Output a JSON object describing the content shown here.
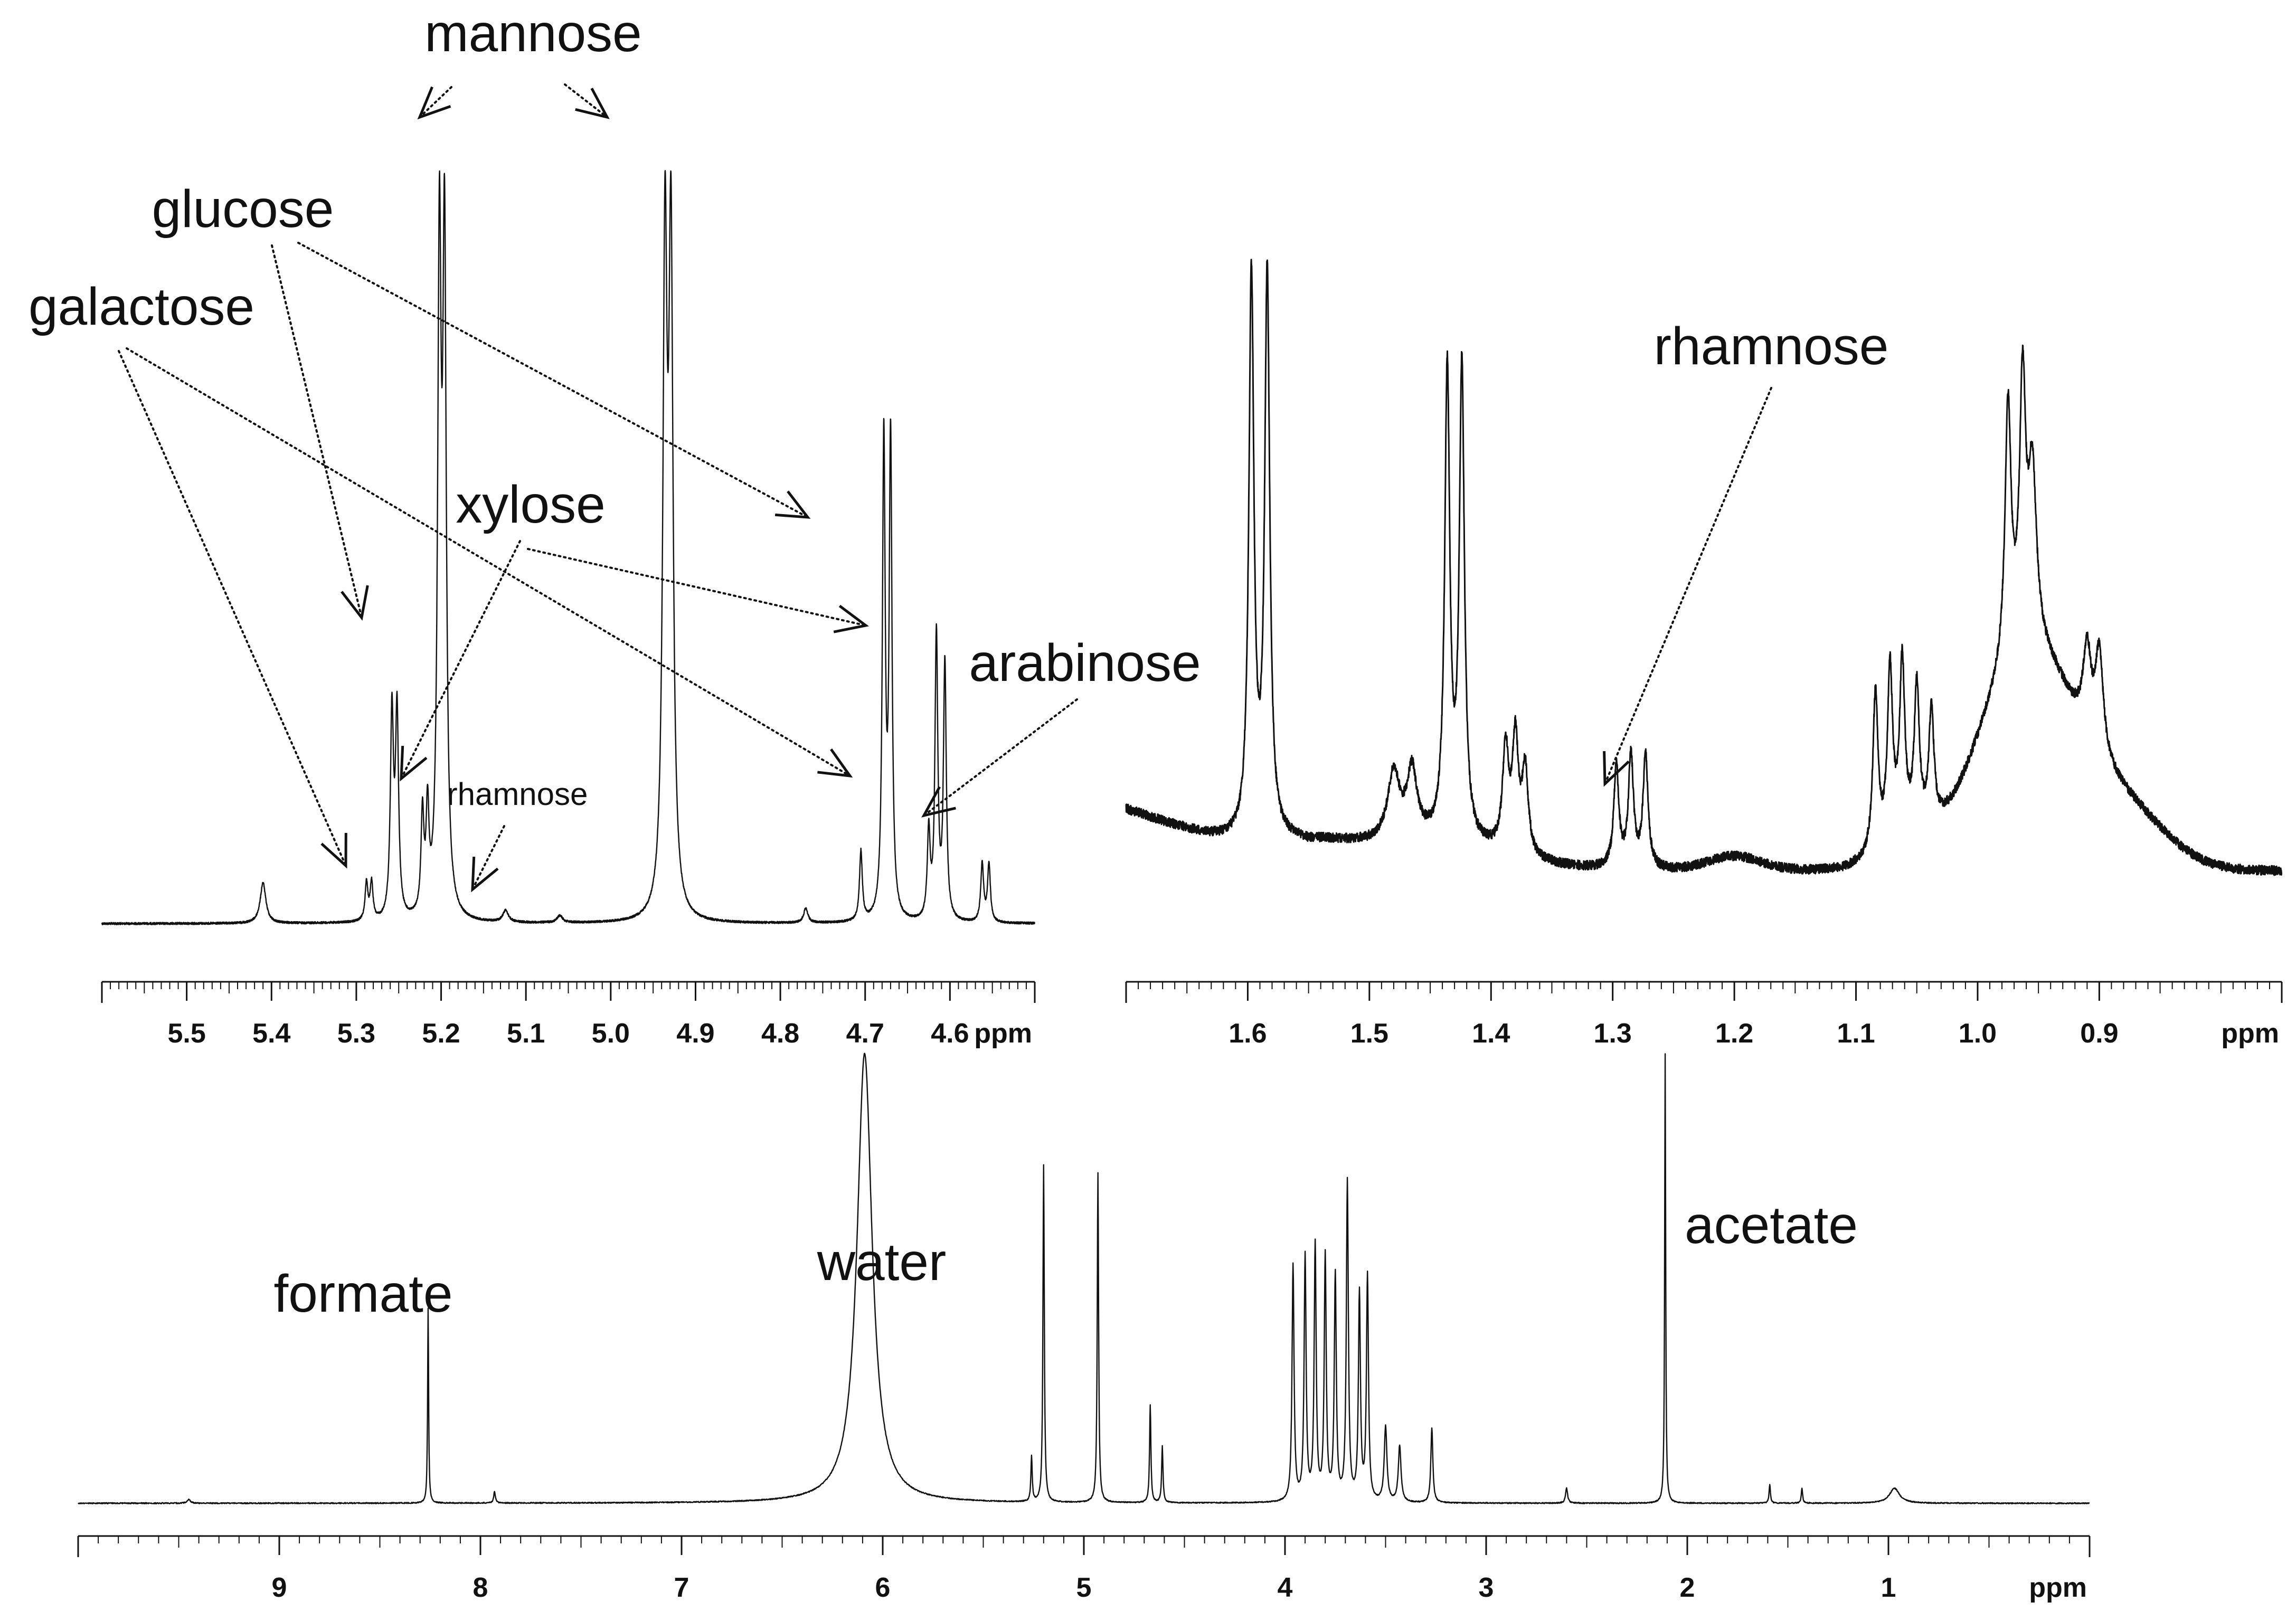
{
  "figure": {
    "description_free": true
  },
  "chart_data": [
    {
      "id": "top-left",
      "type": "line",
      "title": "",
      "xlabel": "ppm",
      "ylabel": "",
      "xlim": [
        5.6,
        4.5
      ],
      "ticks": [
        "5.5",
        "5.4",
        "5.3",
        "5.2",
        "5.1",
        "5.0",
        "4.9",
        "4.8",
        "4.7",
        "4.6"
      ],
      "tick_values": [
        5.5,
        5.4,
        5.3,
        5.2,
        5.1,
        5.0,
        4.9,
        4.8,
        4.7,
        4.6
      ],
      "peaks": [
        {
          "ppm": 5.41,
          "height": 0.07,
          "width": 0.004
        },
        {
          "ppm": 5.288,
          "height": 0.065,
          "width": 0.002
        },
        {
          "ppm": 5.282,
          "height": 0.065,
          "width": 0.002
        },
        {
          "ppm": 5.258,
          "height": 0.35,
          "width": 0.0022
        },
        {
          "ppm": 5.252,
          "height": 0.35,
          "width": 0.0022
        },
        {
          "ppm": 5.222,
          "height": 0.17,
          "width": 0.002
        },
        {
          "ppm": 5.216,
          "height": 0.17,
          "width": 0.002
        },
        {
          "ppm": 5.202,
          "height": 1.12,
          "width": 0.0025
        },
        {
          "ppm": 5.196,
          "height": 1.12,
          "width": 0.0025
        },
        {
          "ppm": 5.124,
          "height": 0.02,
          "width": 0.004
        },
        {
          "ppm": 5.06,
          "height": 0.012,
          "width": 0.004
        },
        {
          "ppm": 4.936,
          "height": 1.12,
          "width": 0.003
        },
        {
          "ppm": 4.929,
          "height": 1.12,
          "width": 0.003
        },
        {
          "ppm": 4.77,
          "height": 0.025,
          "width": 0.003
        },
        {
          "ppm": 4.705,
          "height": 0.12,
          "width": 0.002
        },
        {
          "ppm": 4.678,
          "height": 0.82,
          "width": 0.002
        },
        {
          "ppm": 4.67,
          "height": 0.82,
          "width": 0.002
        },
        {
          "ppm": 4.625,
          "height": 0.15,
          "width": 0.002
        },
        {
          "ppm": 4.616,
          "height": 0.49,
          "width": 0.002
        },
        {
          "ppm": 4.606,
          "height": 0.44,
          "width": 0.002
        },
        {
          "ppm": 4.562,
          "height": 0.1,
          "width": 0.002
        },
        {
          "ppm": 4.554,
          "height": 0.1,
          "width": 0.002
        }
      ],
      "annotations": [
        {
          "text": "mannose",
          "style": "large"
        },
        {
          "text": "glucose",
          "style": "large"
        },
        {
          "text": "galactose",
          "style": "large"
        },
        {
          "text": "xylose",
          "style": "large"
        },
        {
          "text": "arabinose",
          "style": "large"
        },
        {
          "text": "rhamnose",
          "style": "small"
        }
      ]
    },
    {
      "id": "top-right",
      "type": "line",
      "title": "",
      "xlabel": "ppm",
      "ylabel": "",
      "xlim": [
        1.7,
        0.75
      ],
      "ticks": [
        "1.6",
        "1.5",
        "1.4",
        "1.3",
        "1.2",
        "1.1",
        "1.0",
        "0.9"
      ],
      "tick_values": [
        1.6,
        1.5,
        1.4,
        1.3,
        1.2,
        1.1,
        1.0,
        0.9
      ],
      "peaks": [
        {
          "ppm": 1.597,
          "height": 1.0,
          "width": 0.0025
        },
        {
          "ppm": 1.584,
          "height": 1.0,
          "width": 0.0025
        },
        {
          "ppm": 1.436,
          "height": 0.83,
          "width": 0.0025
        },
        {
          "ppm": 1.424,
          "height": 0.84,
          "width": 0.0025
        },
        {
          "ppm": 1.48,
          "height": 0.12,
          "width": 0.006
        },
        {
          "ppm": 1.465,
          "height": 0.12,
          "width": 0.005
        },
        {
          "ppm": 1.388,
          "height": 0.18,
          "width": 0.003
        },
        {
          "ppm": 1.38,
          "height": 0.2,
          "width": 0.003
        },
        {
          "ppm": 1.372,
          "height": 0.15,
          "width": 0.003
        },
        {
          "ppm": 1.297,
          "height": 0.18,
          "width": 0.0025
        },
        {
          "ppm": 1.285,
          "height": 0.2,
          "width": 0.0025
        },
        {
          "ppm": 1.273,
          "height": 0.2,
          "width": 0.0025
        },
        {
          "ppm": 1.084,
          "height": 0.28,
          "width": 0.0025
        },
        {
          "ppm": 1.072,
          "height": 0.3,
          "width": 0.0025
        },
        {
          "ppm": 1.062,
          "height": 0.3,
          "width": 0.0025
        },
        {
          "ppm": 1.05,
          "height": 0.25,
          "width": 0.0025
        },
        {
          "ppm": 1.038,
          "height": 0.2,
          "width": 0.0025
        },
        {
          "ppm": 0.975,
          "height": 0.45,
          "width": 0.003
        },
        {
          "ppm": 0.963,
          "height": 0.45,
          "width": 0.003
        },
        {
          "ppm": 0.955,
          "height": 0.3,
          "width": 0.004
        },
        {
          "ppm": 0.91,
          "height": 0.15,
          "width": 0.004
        },
        {
          "ppm": 0.9,
          "height": 0.18,
          "width": 0.004
        }
      ],
      "annotations": [
        {
          "text": "rhamnose",
          "style": "large"
        }
      ]
    },
    {
      "id": "bottom",
      "type": "line",
      "title": "",
      "xlabel": "ppm",
      "ylabel": "",
      "xlim": [
        10.0,
        0.0
      ],
      "ticks": [
        "9",
        "8",
        "7",
        "6",
        "5",
        "4",
        "3",
        "2",
        "1"
      ],
      "tick_values": [
        9,
        8,
        7,
        6,
        5,
        4,
        3,
        2,
        1
      ],
      "peaks": [
        {
          "ppm": 9.45,
          "height": 0.01,
          "width": 0.01
        },
        {
          "ppm": 8.26,
          "height": 0.52,
          "width": 0.003
        },
        {
          "ppm": 7.93,
          "height": 0.03,
          "width": 0.005
        },
        {
          "ppm": 6.09,
          "height": 1.2,
          "width": 0.045
        },
        {
          "ppm": 5.26,
          "height": 0.12,
          "width": 0.004
        },
        {
          "ppm": 5.2,
          "height": 0.9,
          "width": 0.004
        },
        {
          "ppm": 4.93,
          "height": 0.88,
          "width": 0.004
        },
        {
          "ppm": 4.67,
          "height": 0.26,
          "width": 0.004
        },
        {
          "ppm": 4.61,
          "height": 0.15,
          "width": 0.004
        },
        {
          "ppm": 3.96,
          "height": 0.63,
          "width": 0.006
        },
        {
          "ppm": 3.9,
          "height": 0.65,
          "width": 0.006
        },
        {
          "ppm": 3.85,
          "height": 0.68,
          "width": 0.006
        },
        {
          "ppm": 3.8,
          "height": 0.65,
          "width": 0.006
        },
        {
          "ppm": 3.75,
          "height": 0.6,
          "width": 0.006
        },
        {
          "ppm": 3.69,
          "height": 0.85,
          "width": 0.006
        },
        {
          "ppm": 3.63,
          "height": 0.55,
          "width": 0.006
        },
        {
          "ppm": 3.59,
          "height": 0.6,
          "width": 0.006
        },
        {
          "ppm": 3.5,
          "height": 0.2,
          "width": 0.008
        },
        {
          "ppm": 3.43,
          "height": 0.15,
          "width": 0.008
        },
        {
          "ppm": 3.27,
          "height": 0.2,
          "width": 0.006
        },
        {
          "ppm": 2.6,
          "height": 0.04,
          "width": 0.006
        },
        {
          "ppm": 2.11,
          "height": 1.2,
          "width": 0.003
        },
        {
          "ppm": 1.59,
          "height": 0.05,
          "width": 0.004
        },
        {
          "ppm": 1.43,
          "height": 0.04,
          "width": 0.004
        },
        {
          "ppm": 0.97,
          "height": 0.04,
          "width": 0.03
        }
      ],
      "annotations": [
        {
          "text": "formate",
          "style": "large"
        },
        {
          "text": "water",
          "style": "large"
        },
        {
          "text": "acetate",
          "style": "large"
        }
      ]
    }
  ]
}
